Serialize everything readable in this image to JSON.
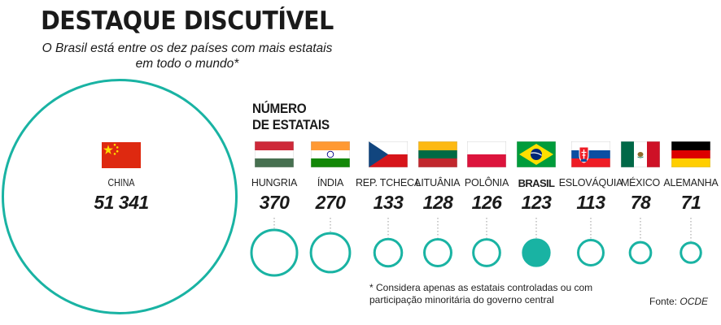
{
  "header": {
    "title": "DESTAQUE DISCUTÍVEL",
    "subtitle_line1": "O Brasil está entre os dez países com mais estatais",
    "subtitle_line2": "em todo o mundo*"
  },
  "legend_label_line1": "NÚMERO",
  "legend_label_line2": "DE ESTATAIS",
  "chart_data": {
    "type": "bubble",
    "title": "DESTAQUE DISCUTÍVEL",
    "subtitle": "O Brasil está entre os dez países com mais estatais em todo o mundo*",
    "series": [
      {
        "name": "NÚMERO DE ESTATAIS",
        "categories": [
          "CHINA",
          "HUNGRIA",
          "ÍNDIA",
          "REP. TCHECA",
          "LITUÂNIA",
          "POLÔNIA",
          "BRASIL",
          "ESLOVÁQUIA",
          "MÉXICO",
          "ALEMANHA"
        ],
        "values": [
          51341,
          370,
          270,
          133,
          128,
          126,
          123,
          113,
          78,
          71
        ],
        "labels": [
          "51 341",
          "370",
          "270",
          "133",
          "128",
          "126",
          "123",
          "113",
          "78",
          "71"
        ]
      }
    ],
    "highlight": "BRASIL"
  },
  "china": {
    "name": "CHINA",
    "value": "51 341",
    "flag": "china-flag"
  },
  "countries": [
    {
      "name": "HUNGRIA",
      "value": "370",
      "flag": "hungary-flag"
    },
    {
      "name": "ÍNDIA",
      "value": "270",
      "flag": "india-flag"
    },
    {
      "name": "REP. TCHECA",
      "value": "133",
      "flag": "czech-flag"
    },
    {
      "name": "LITUÂNIA",
      "value": "128",
      "flag": "lithuania-flag"
    },
    {
      "name": "POLÔNIA",
      "value": "126",
      "flag": "poland-flag"
    },
    {
      "name": "BRASIL",
      "value": "123",
      "flag": "brazil-flag"
    },
    {
      "name": "ESLOVÁQUIA",
      "value": "113",
      "flag": "slovakia-flag"
    },
    {
      "name": "MÉXICO",
      "value": "78",
      "flag": "mexico-flag"
    },
    {
      "name": "ALEMANHA",
      "value": "71",
      "flag": "germany-flag"
    }
  ],
  "footnote_line1": "* Considera apenas as estatais controladas ou com",
  "footnote_line2": "participação minoritária do governo central",
  "source_label": "Fonte:",
  "source_name": "OCDE",
  "colors": {
    "accent": "#19b3a3",
    "text": "#1a1a1a"
  }
}
